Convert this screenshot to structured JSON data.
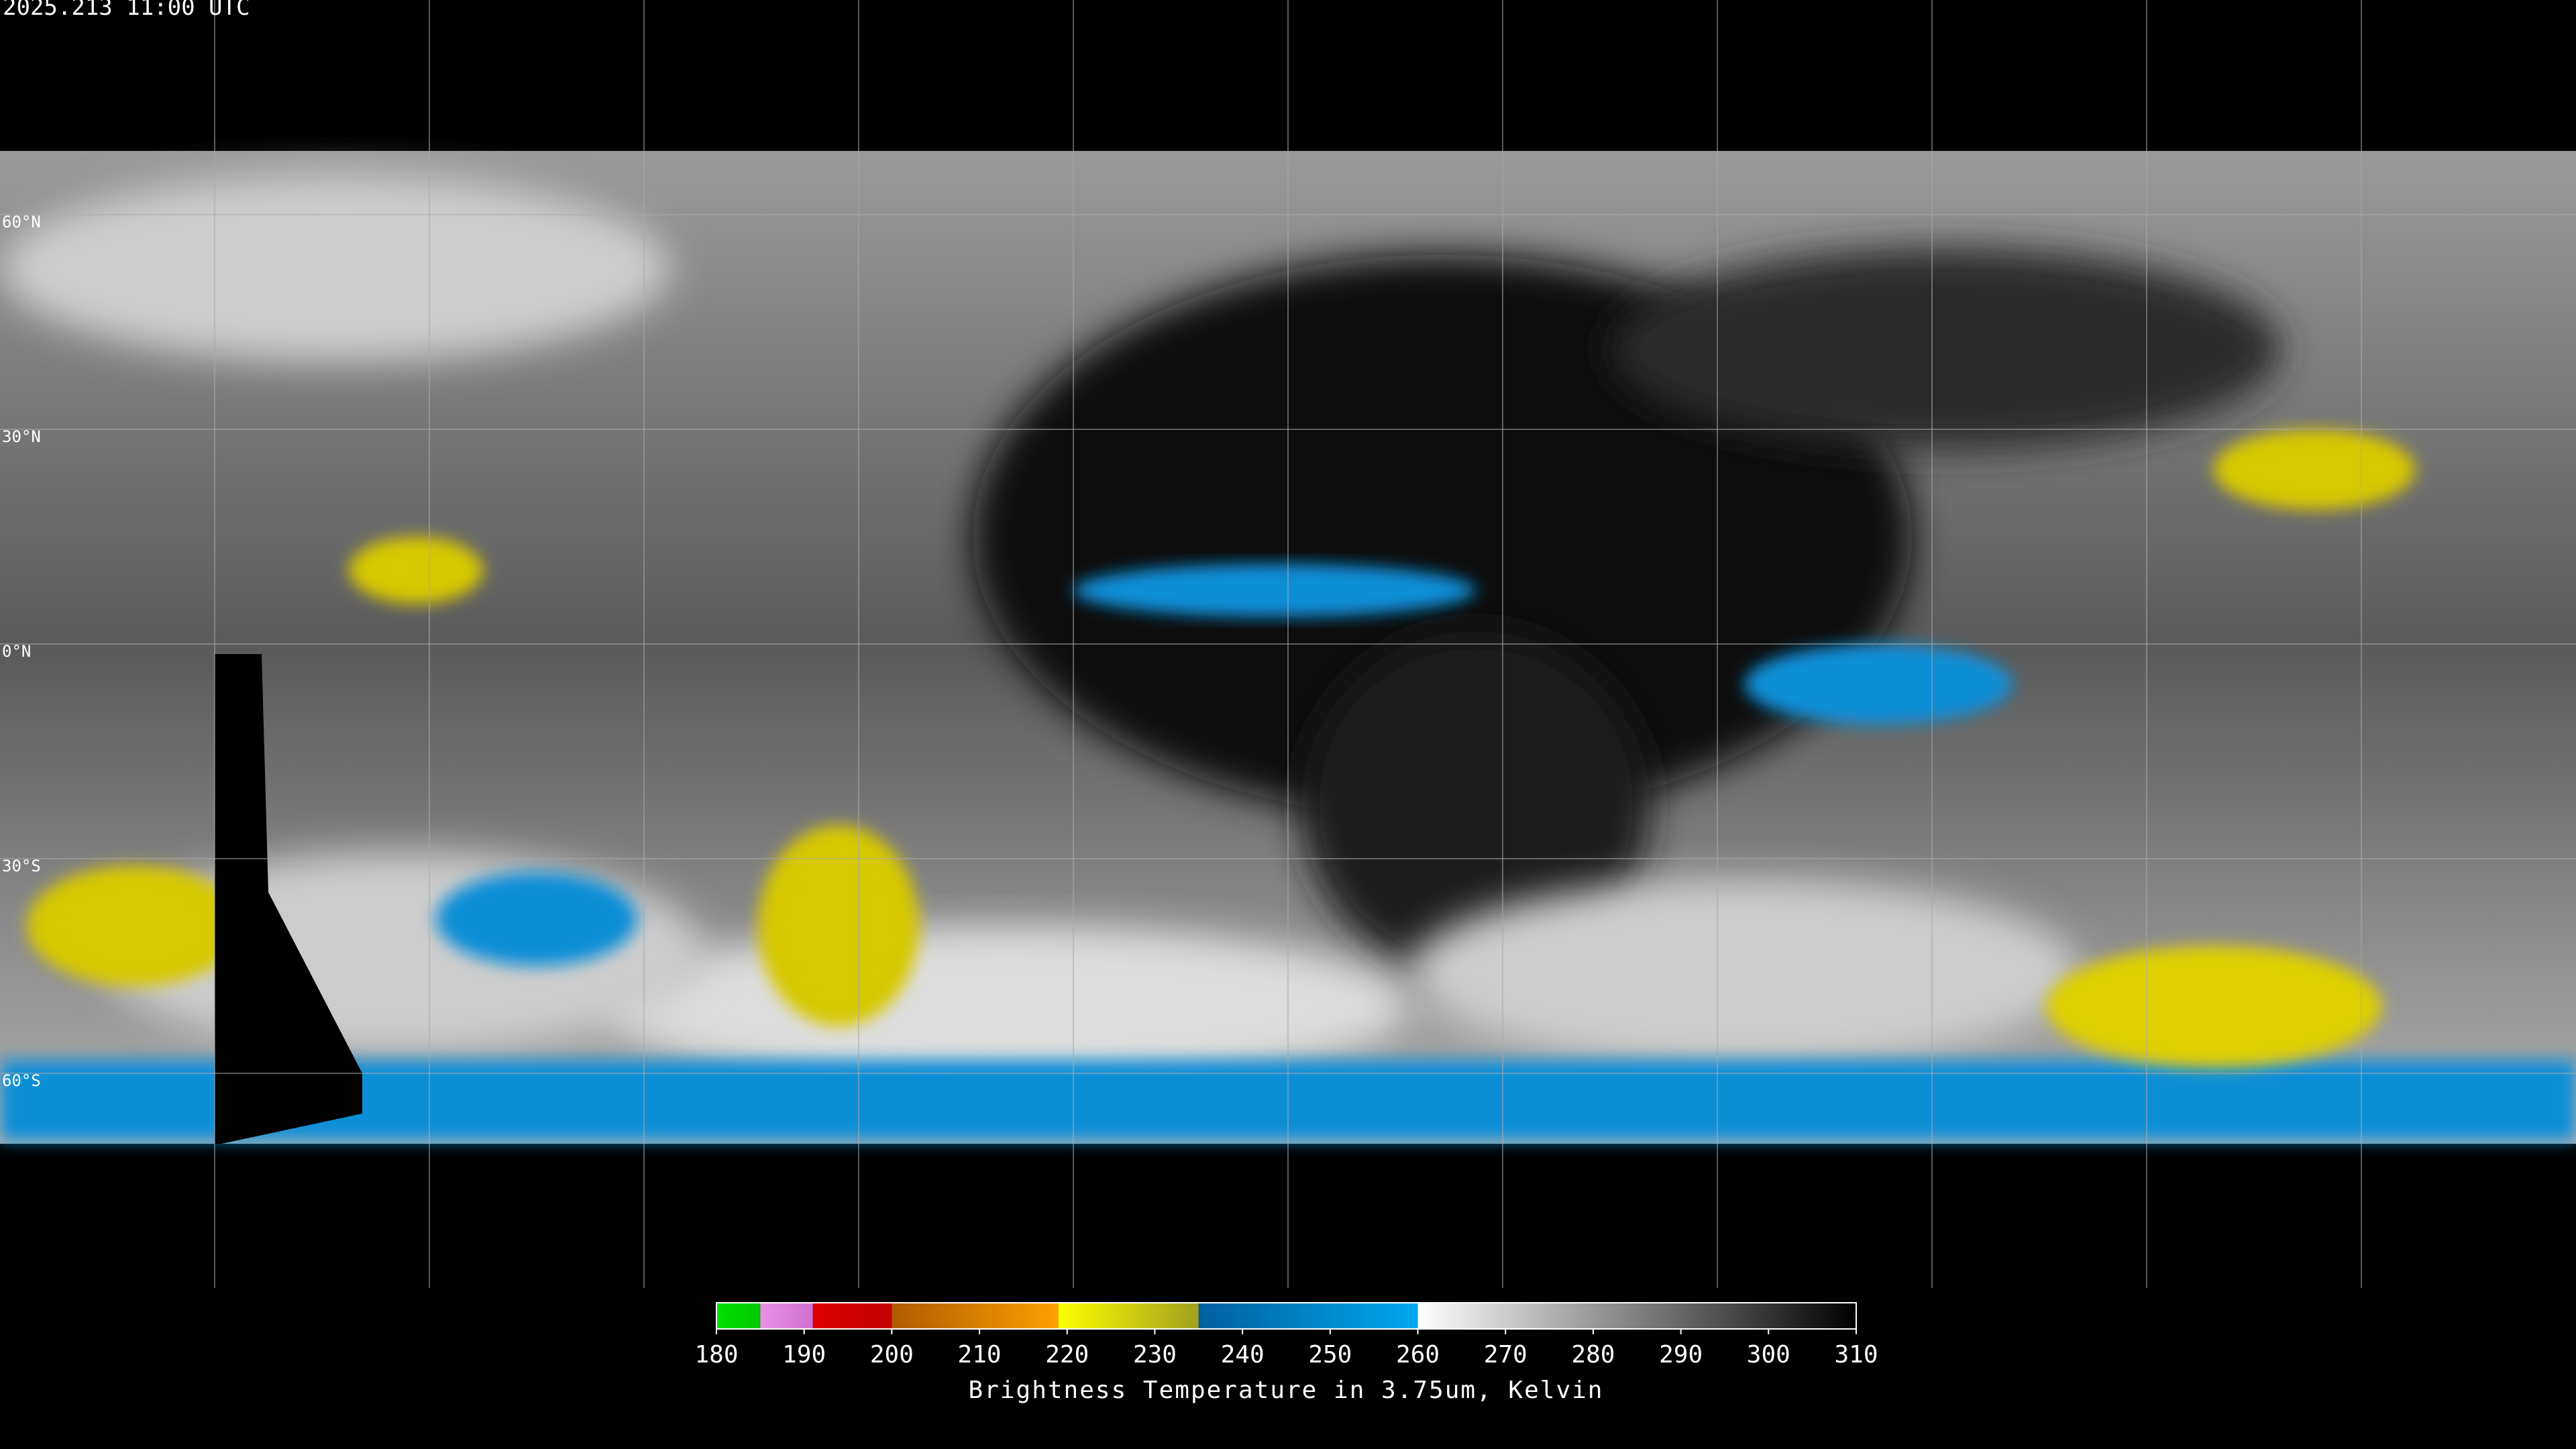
{
  "header": {
    "timestamp": "2025.213 11:00 UTC"
  },
  "map": {
    "lat_lines": [
      {
        "value": 60,
        "label": "60°N"
      },
      {
        "value": 30,
        "label": "30°N"
      },
      {
        "value": 0,
        "label": "0°N"
      },
      {
        "value": -30,
        "label": "30°S"
      },
      {
        "value": -60,
        "label": "60°S"
      }
    ],
    "lon_lines": [
      -150,
      -120,
      -90,
      -60,
      -30,
      0,
      30,
      60,
      90,
      120,
      150
    ]
  },
  "colorbar": {
    "range": [
      180,
      310
    ],
    "ticks": [
      180,
      190,
      200,
      210,
      220,
      230,
      240,
      250,
      260,
      270,
      280,
      290,
      300,
      310
    ],
    "segments": [
      {
        "from": 180,
        "to": 185,
        "colors": [
          "#00e000",
          "#00c800"
        ]
      },
      {
        "from": 185,
        "to": 191,
        "colors": [
          "#e890e8",
          "#d070d0"
        ]
      },
      {
        "from": 191,
        "to": 200,
        "colors": [
          "#e00000",
          "#c00000"
        ]
      },
      {
        "from": 200,
        "to": 219,
        "colors": [
          "#b05a00",
          "#ffa000"
        ]
      },
      {
        "from": 219,
        "to": 235,
        "colors": [
          "#ffff00",
          "#a0a020"
        ]
      },
      {
        "from": 235,
        "to": 260,
        "colors": [
          "#0060a0",
          "#00a8f0"
        ]
      },
      {
        "from": 260,
        "to": 310,
        "colors": [
          "#ffffff",
          "#000000"
        ]
      }
    ],
    "label": "Brightness Temperature in 3.75um, Kelvin"
  }
}
